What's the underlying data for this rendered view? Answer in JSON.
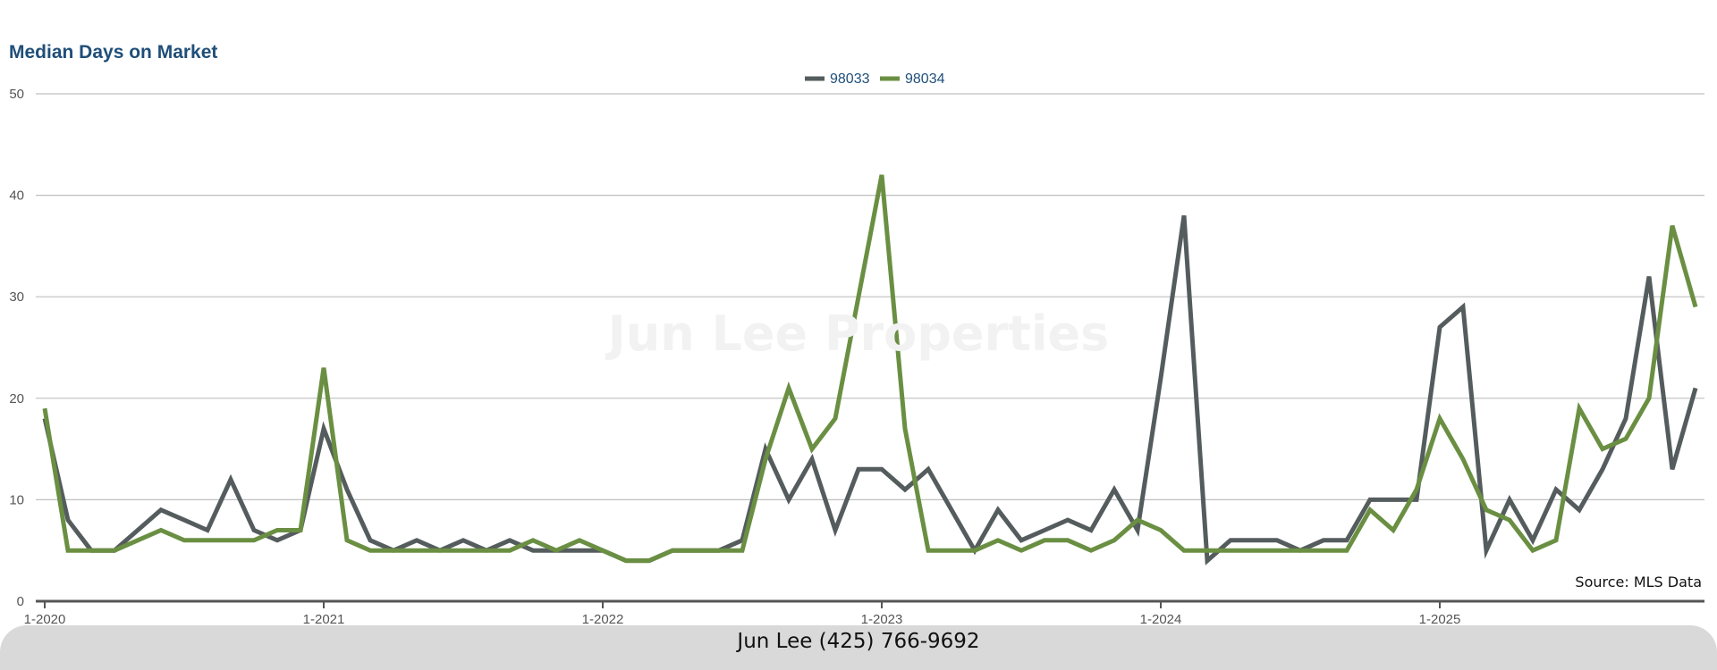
{
  "chart_data": {
    "type": "line",
    "title": "Median Days on Market",
    "xlabel": "",
    "ylabel": "",
    "ylim": [
      0,
      50
    ],
    "yticks": [
      0,
      10,
      20,
      30,
      40,
      50
    ],
    "xtick_labels": [
      "1-2020",
      "1-2021",
      "1-2022",
      "1-2023",
      "1-2024",
      "1-2025"
    ],
    "x_start": "1-2020",
    "x_end": "11-2025",
    "grid": true,
    "legend_position": "top-center",
    "series": [
      {
        "name": "98033",
        "color": "#555c5e",
        "values": [
          18,
          8,
          5,
          5,
          7,
          9,
          8,
          7,
          12,
          7,
          6,
          7,
          17,
          11,
          6,
          5,
          6,
          5,
          6,
          5,
          6,
          5,
          5,
          5,
          5,
          4,
          4,
          5,
          5,
          5,
          6,
          15,
          10,
          14,
          7,
          13,
          13,
          11,
          13,
          9,
          5,
          9,
          6,
          7,
          8,
          7,
          11,
          7,
          22,
          38,
          4,
          6,
          6,
          6,
          5,
          6,
          6,
          10,
          10,
          10,
          27,
          29,
          5,
          10,
          6,
          11,
          9,
          13,
          18,
          32,
          13,
          21
        ]
      },
      {
        "name": "98034",
        "color": "#6a8f42",
        "values": [
          19,
          5,
          5,
          5,
          6,
          7,
          6,
          6,
          6,
          6,
          7,
          7,
          23,
          6,
          5,
          5,
          5,
          5,
          5,
          5,
          5,
          6,
          5,
          6,
          5,
          4,
          4,
          5,
          5,
          5,
          5,
          14,
          21,
          15,
          18,
          30,
          42,
          17,
          5,
          5,
          5,
          6,
          5,
          6,
          6,
          5,
          6,
          8,
          7,
          5,
          5,
          5,
          5,
          5,
          5,
          5,
          5,
          9,
          7,
          11,
          18,
          14,
          9,
          8,
          5,
          6,
          19,
          15,
          16,
          20,
          37,
          29
        ]
      }
    ]
  },
  "watermark_text": "Jun Lee Properties",
  "source_note": "Source: MLS Data",
  "footer": {
    "contact": "Jun Lee (425) 766-9692"
  }
}
